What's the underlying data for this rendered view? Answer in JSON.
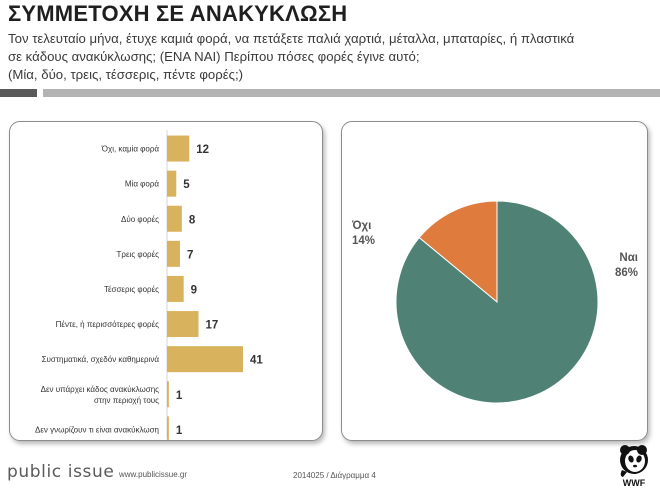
{
  "header": {
    "title": "ΣΥΜΜΕΤΟΧΗ ΣΕ ΑΝΑΚΥΚΛΩΣΗ",
    "question_lines": [
      "Τον τελευταίο μήνα, έτυχε καμιά φορά, να πετάξετε παλιά χαρτιά, μέταλλα, μπαταρίες, ή πλαστικά",
      "σε κάδους ανακύκλωσης; (ΕΝΑ ΝΑΙ) Περίπου πόσες φορές έγινε αυτό;",
      "(Μία, δύο, τρεις, τέσσερις, πέντε φορές;)"
    ]
  },
  "chart_data": [
    {
      "type": "bar",
      "orientation": "horizontal",
      "categories": [
        [
          "Όχι, καμία φορά"
        ],
        [
          "Μία φορά"
        ],
        [
          "Δύο φορές"
        ],
        [
          "Τρεις φορές"
        ],
        [
          "Τέσσερις φορές"
        ],
        [
          "Πέντε, ή περισσότερες φορές"
        ],
        [
          "Συστηματικά, σχεδόν καθημερινά"
        ],
        [
          "Δεν υπάρχει κάδος ανακύκλωσης",
          "στην περιοχή τους"
        ],
        [
          "Δεν γνωρίζουν τι είναι ανακύκλωση"
        ]
      ],
      "values": [
        12,
        5,
        8,
        7,
        9,
        17,
        41,
        1,
        1
      ],
      "value_labels": [
        "12",
        "5",
        "8",
        "7",
        "9",
        "17",
        "41",
        "1",
        "1"
      ],
      "xlim": [
        0,
        41
      ],
      "bar_color": "#d9b25e",
      "grid": false
    },
    {
      "type": "pie",
      "slices": [
        {
          "label": "Ναι",
          "value": 86,
          "display": "86%",
          "color": "#4f8275"
        },
        {
          "label": "Όχι",
          "value": 14,
          "display": "14%",
          "color": "#e07b3e"
        }
      ],
      "start_angle_deg": 270,
      "direction": "counterclockwise"
    }
  ],
  "footer": {
    "logo_text": "public issue",
    "url": "www.publicissue.gr",
    "code": "2014025 / Διάγραμμα 4",
    "wwf_text": "WWF"
  }
}
